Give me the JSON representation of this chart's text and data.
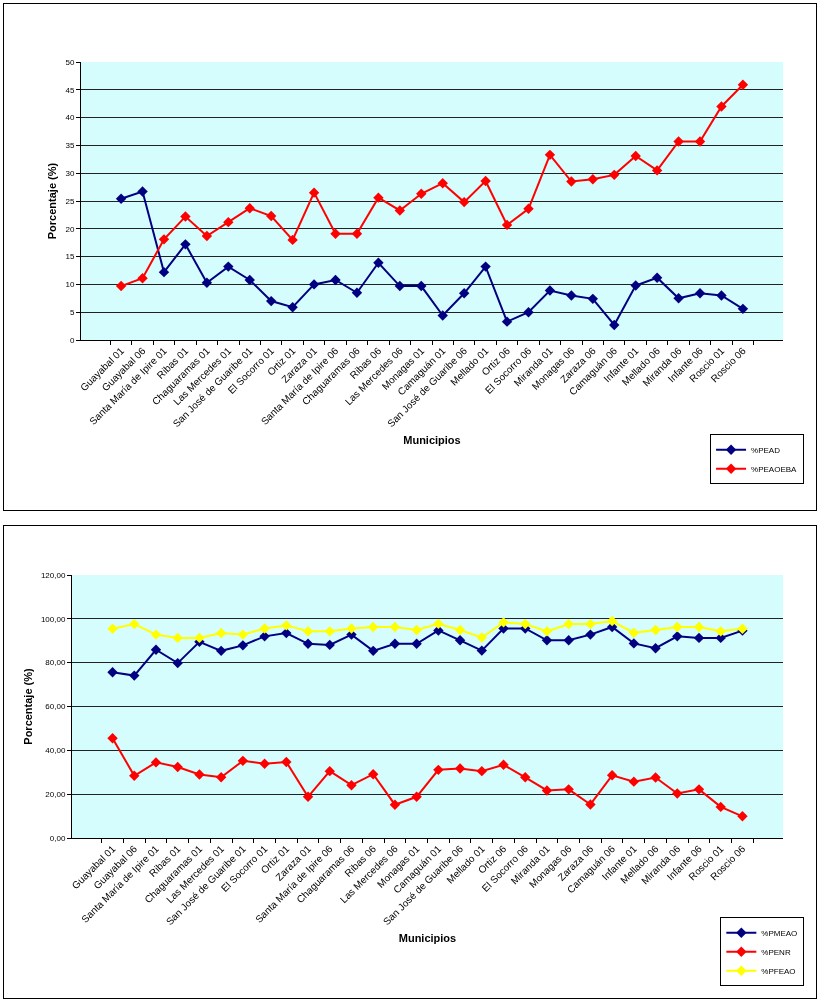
{
  "chart_data": [
    {
      "type": "line",
      "xlabel": "Municipios",
      "ylabel": "Porcentaje (%)",
      "categories": [
        "Guayabal 01",
        "Guayabal 06",
        "Santa María de Ipire 01",
        "Ribas 01",
        "Chaguaramas 01",
        "Las Mercedes 01",
        "San José de Guaribe 01",
        "El Socorro 01",
        "Ortiz 01",
        "Zaraza 01",
        "Santa María de Ipire 06",
        "Chaguaramas 06",
        "Ribas 06",
        "Las Mercedes 06",
        "Monagas 01",
        "Camaguán 01",
        "San José de Guaribe 06",
        "Mellado 01",
        "Ortiz 06",
        "El Socorro 06",
        "Miranda 01",
        "Monagas 06",
        "Zaraza 06",
        "Camaguán 06",
        "Infante 01",
        "Mellado 06",
        "Miranda 06",
        "Infante 06",
        "Roscio 01",
        "Roscio 06"
      ],
      "series": [
        {
          "name": "%PEAD",
          "color": "#000080",
          "values": [
            25.4,
            26.7,
            12.2,
            17.2,
            10.3,
            13.2,
            10.8,
            7.0,
            5.9,
            10.0,
            10.8,
            8.5,
            13.9,
            9.7,
            9.7,
            4.4,
            8.4,
            13.2,
            3.3,
            5.0,
            8.9,
            8.0,
            7.4,
            2.7,
            9.8,
            11.2,
            7.5,
            8.4,
            8.0,
            5.6
          ]
        },
        {
          "name": "%PEAOEBA",
          "color": "#ff0000",
          "values": [
            9.7,
            11.1,
            18.1,
            22.2,
            18.7,
            21.2,
            23.7,
            22.3,
            18.0,
            26.5,
            19.1,
            19.1,
            25.6,
            23.3,
            26.3,
            28.2,
            24.8,
            28.6,
            20.7,
            23.6,
            33.3,
            28.5,
            28.9,
            29.7,
            33.1,
            30.5,
            35.7,
            35.7,
            42.0,
            45.9
          ]
        }
      ],
      "ylim": [
        0,
        50
      ],
      "yticks": [
        0,
        5,
        10,
        15,
        20,
        25,
        30,
        35,
        40,
        45,
        50
      ],
      "grid": "y",
      "legend": "bottom right",
      "marker": "diamond",
      "line_style": "solid"
    },
    {
      "type": "line",
      "xlabel": "Municipios",
      "ylabel": "Porcentaje (%)",
      "categories": [
        "Guayabal 01",
        "Guayabal 06",
        "Santa María de Ipire 01",
        "Ribas 01",
        "Chaguaramas 01",
        "Las Mercedes 01",
        "San José de Guaribe 01",
        "El Socorro 01",
        "Ortiz 01",
        "Zaraza 01",
        "Santa María de Ipire 06",
        "Chaguaramas 06",
        "Ribas 06",
        "Las Mercedes 06",
        "Monagas 01",
        "Camaguán 01",
        "San José de Guaribe 06",
        "Mellado 01",
        "Ortiz 06",
        "El Socorro 06",
        "Miranda 01",
        "Monagas 06",
        "Zaraza 06",
        "Camaguán 06",
        "Infante 01",
        "Mellado 06",
        "Miranda 06",
        "Infante 06",
        "Roscio 01",
        "Roscio 06"
      ],
      "series": [
        {
          "name": "%PMEAO",
          "color": "#000080",
          "values": [
            75.6,
            74.1,
            85.9,
            79.8,
            89.5,
            85.4,
            87.9,
            92.0,
            93.5,
            88.6,
            88.1,
            92.8,
            85.4,
            88.6,
            88.6,
            94.7,
            90.2,
            85.5,
            95.6,
            95.6,
            90.2,
            90.2,
            92.8,
            96.3,
            88.8,
            86.6,
            92.0,
            91.3,
            91.3,
            94.6
          ]
        },
        {
          "name": "%PENR",
          "color": "#ff0000",
          "values": [
            45.5,
            28.4,
            34.5,
            32.4,
            29.0,
            27.7,
            35.2,
            33.9,
            34.7,
            18.8,
            30.5,
            24.1,
            29.1,
            15.2,
            18.8,
            31.1,
            31.7,
            30.5,
            33.4,
            27.7,
            21.7,
            22.2,
            15.3,
            28.6,
            25.7,
            27.6,
            20.3,
            22.2,
            14.2,
            9.9
          ]
        },
        {
          "name": "%PFEAO",
          "color": "#ffff00",
          "values": [
            95.5,
            97.6,
            92.8,
            91.3,
            91.3,
            93.5,
            92.8,
            95.6,
            97.0,
            94.3,
            94.3,
            95.6,
            96.3,
            96.3,
            94.9,
            97.7,
            94.9,
            91.5,
            98.4,
            97.6,
            94.3,
            97.6,
            97.6,
            99.0,
            93.6,
            94.9,
            96.3,
            96.3,
            94.3,
            95.5
          ]
        }
      ],
      "ylim": [
        0,
        120
      ],
      "yticks": [
        {
          "value": 0,
          "label": "0,00"
        },
        {
          "value": 20,
          "label": "20,00"
        },
        {
          "value": 40,
          "label": "40,00"
        },
        {
          "value": 60,
          "label": "60,00"
        },
        {
          "value": 80,
          "label": "80,00"
        },
        {
          "value": 100,
          "label": "100,00"
        },
        {
          "value": 120,
          "label": "120,00"
        }
      ],
      "grid": "y",
      "legend": "bottom right",
      "marker": "diamond",
      "line_style": "solid"
    }
  ]
}
